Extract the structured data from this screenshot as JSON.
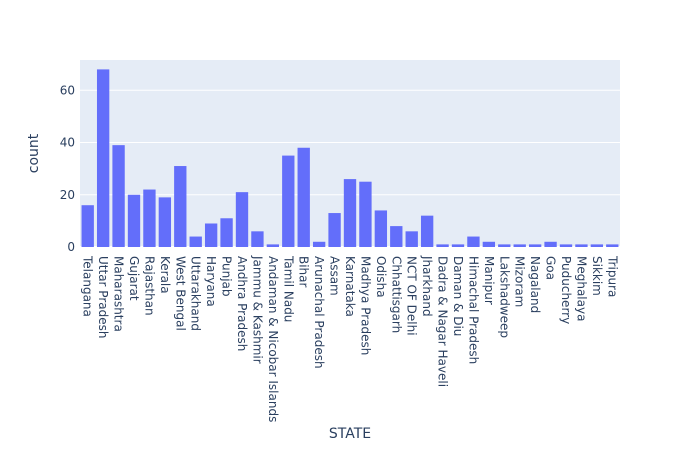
{
  "chart_data": {
    "type": "bar",
    "xlabel": "STATE",
    "ylabel": "count",
    "ylim": [
      0,
      71.6
    ],
    "yticks": [
      0,
      20,
      40,
      60
    ],
    "grid": true,
    "colors": {
      "bar": "#636efa",
      "plot_bg": "#e5ecf6",
      "grid": "#ffffff",
      "text": "#2a3f5f"
    },
    "categories": [
      "Telangana",
      "Uttar Pradesh",
      "Maharashtra",
      "Gujarat",
      "Rajasthan",
      "Kerala",
      "West Bengal",
      "Uttarakhand",
      "Haryana",
      "Punjab",
      "Andhra Pradesh",
      "Jammu & Kashmir",
      "Andaman & Nicobar Islands",
      "Tamil Nadu",
      "Bihar",
      "Arunachal Pradesh",
      "Assam",
      "Karnataka",
      "Madhya Pradesh",
      "Odisha",
      "Chhattisgarh",
      "NCT OF Delhi",
      "Jharkhand",
      "Dadra & Nagar Haveli",
      "Daman & Diu",
      "Himachal Pradesh",
      "Manipur",
      "Lakshadweep",
      "Mizoram",
      "Nagaland",
      "Goa",
      "Puducherry",
      "Meghalaya",
      "Sikkim",
      "Tripura"
    ],
    "values": [
      16,
      68,
      39,
      20,
      22,
      19,
      31,
      4,
      9,
      11,
      21,
      6,
      1,
      35,
      38,
      2,
      13,
      26,
      25,
      14,
      8,
      6,
      12,
      1,
      1,
      4,
      2,
      1,
      1,
      1,
      2,
      1,
      1,
      1,
      1
    ]
  }
}
